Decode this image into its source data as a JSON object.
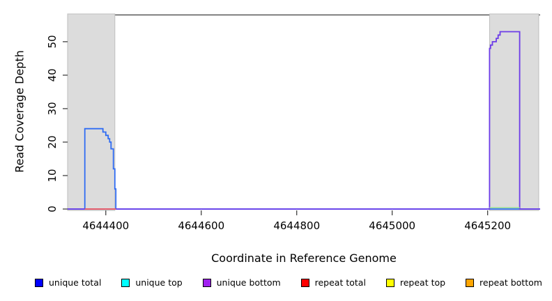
{
  "chart_data": {
    "type": "line",
    "title": "",
    "xlabel": "Coordinate in Reference Genome",
    "ylabel": "Read Coverage Depth",
    "xlim": [
      4644320,
      4645310
    ],
    "ylim": [
      0,
      58.3
    ],
    "x_ticks": [
      4644400,
      4644600,
      4644800,
      4645000,
      4645200
    ],
    "y_ticks": [
      0,
      10,
      20,
      30,
      40,
      50
    ],
    "grid": false,
    "legend_position": "bottom",
    "top_line": {
      "y": 58.0,
      "color": "#4a4a4a"
    },
    "shaded_regions": [
      {
        "name": "shaded-region-left",
        "x": [
          4644320,
          4644419
        ],
        "fill": "#dcdcdc",
        "stroke": "#bebebe"
      },
      {
        "name": "shaded-region-right",
        "x": [
          4645204,
          4645307
        ],
        "fill": "#dcdcdc",
        "stroke": "#bebebe"
      }
    ],
    "series": [
      {
        "name": "unique total",
        "color": "#2f6cf3",
        "points": [
          [
            4644320,
            0
          ],
          [
            4644356,
            0
          ],
          [
            4644356,
            24
          ],
          [
            4644394,
            24
          ],
          [
            4644394,
            23
          ],
          [
            4644400,
            23
          ],
          [
            4644400,
            22
          ],
          [
            4644405,
            22
          ],
          [
            4644405,
            21
          ],
          [
            4644408,
            21
          ],
          [
            4644408,
            20
          ],
          [
            4644411,
            20
          ],
          [
            4644411,
            18
          ],
          [
            4644416,
            18
          ],
          [
            4644416,
            12
          ],
          [
            4644419,
            12
          ],
          [
            4644419,
            6
          ],
          [
            4644421,
            6
          ],
          [
            4644421,
            0
          ],
          [
            4645310,
            0
          ]
        ]
      },
      {
        "name": "unique bottom",
        "color": "#6c3be8",
        "points": [
          [
            4644320,
            0
          ],
          [
            4645204,
            0
          ],
          [
            4645204,
            48
          ],
          [
            4645206,
            48
          ],
          [
            4645206,
            49
          ],
          [
            4645210,
            49
          ],
          [
            4645210,
            50
          ],
          [
            4645218,
            50
          ],
          [
            4645218,
            51
          ],
          [
            4645222,
            51
          ],
          [
            4645222,
            52
          ],
          [
            4645226,
            52
          ],
          [
            4645226,
            53
          ],
          [
            4645267,
            53
          ],
          [
            4645267,
            0
          ],
          [
            4645310,
            0
          ]
        ]
      },
      {
        "name": "repeat total",
        "color": "#f25c5c",
        "points": [
          [
            4644356,
            0
          ],
          [
            4644421,
            0
          ]
        ]
      },
      {
        "name": "baseline segment green",
        "color": "#9fdf9f",
        "points": [
          [
            4645204,
            0.4
          ],
          [
            4645267,
            0.4
          ]
        ]
      }
    ]
  },
  "legend": {
    "items": [
      {
        "label": "unique total",
        "color": "#0000ff"
      },
      {
        "label": "unique top",
        "color": "#00ffff"
      },
      {
        "label": "unique bottom",
        "color": "#a020f0"
      },
      {
        "label": "repeat total",
        "color": "#ff0000"
      },
      {
        "label": "repeat top",
        "color": "#ffff00"
      },
      {
        "label": "repeat bottom",
        "color": "#ffa500"
      }
    ]
  }
}
